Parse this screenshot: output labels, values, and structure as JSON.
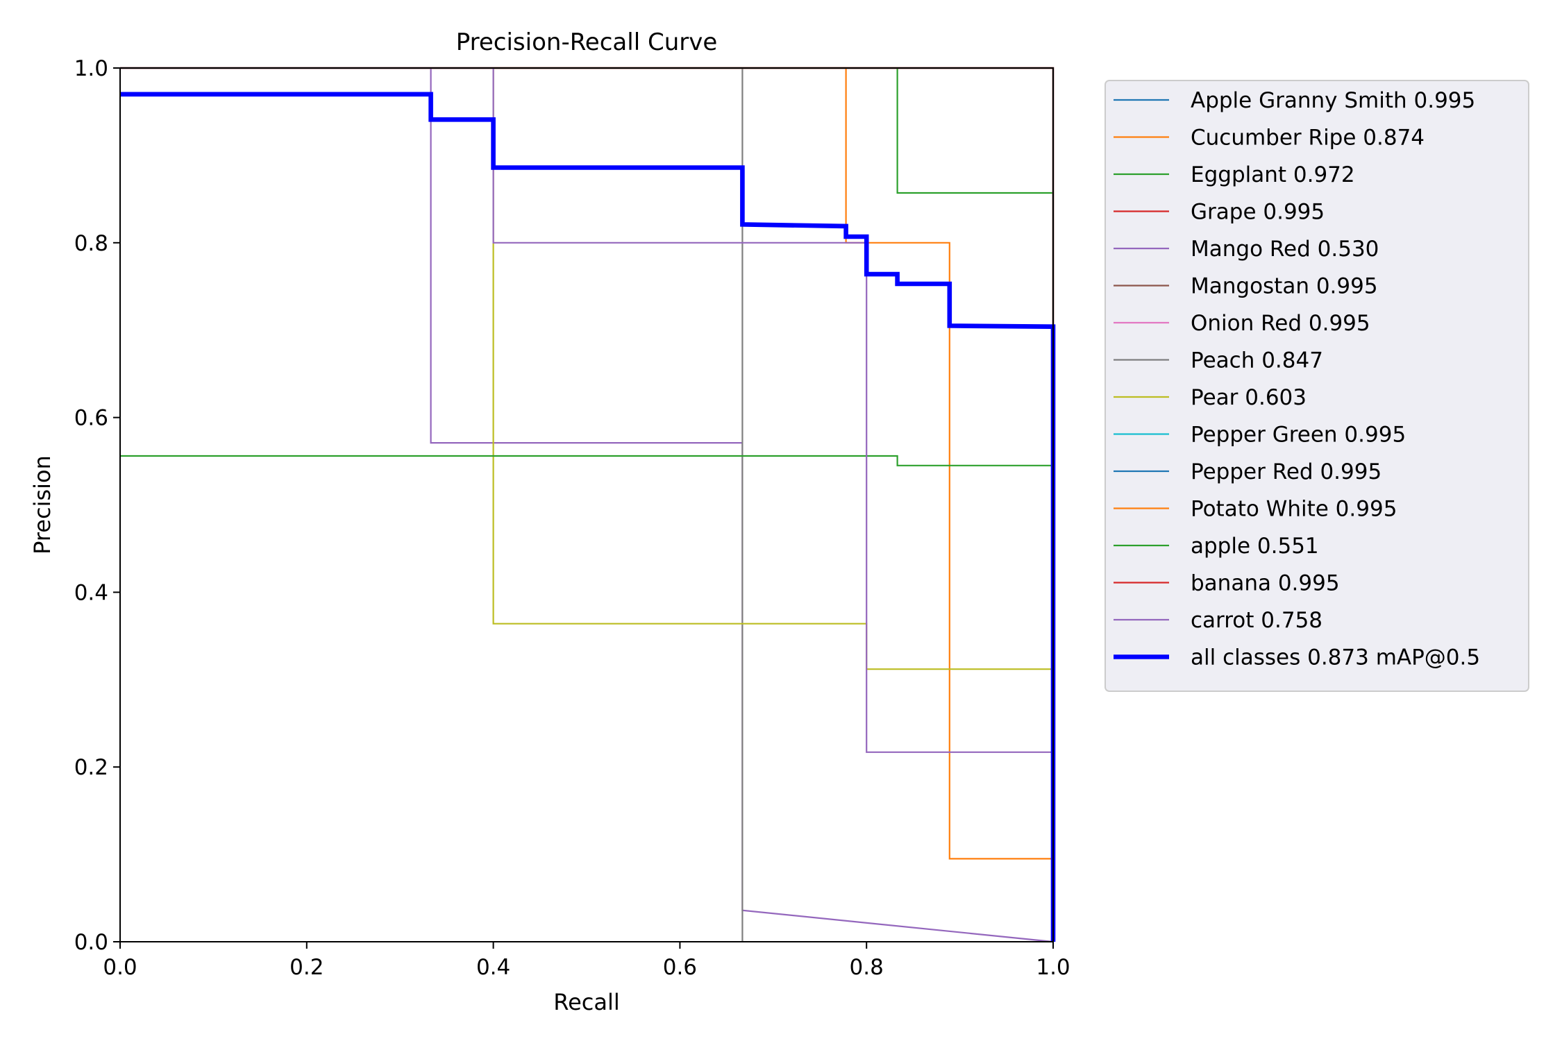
{
  "chart_data": {
    "type": "line",
    "title": "Precision-Recall Curve",
    "xlabel": "Recall",
    "ylabel": "Precision",
    "xlim": [
      0,
      1
    ],
    "ylim": [
      0,
      1
    ],
    "xticks": [
      "0.0",
      "0.2",
      "0.4",
      "0.6",
      "0.8",
      "1.0"
    ],
    "yticks": [
      "0.0",
      "0.2",
      "0.4",
      "0.6",
      "0.8",
      "1.0"
    ],
    "grid": false,
    "legend_position": "outside-right",
    "series": [
      {
        "name": "Apple Granny Smith 0.995",
        "color": "#1f77b4",
        "width": 1,
        "points": [
          [
            0,
            1
          ],
          [
            1,
            1
          ],
          [
            1,
            0
          ]
        ]
      },
      {
        "name": "Cucumber Ripe 0.874",
        "color": "#ff7f0e",
        "width": 1,
        "points": [
          [
            0,
            1
          ],
          [
            0.778,
            1
          ],
          [
            0.778,
            0.8
          ],
          [
            0.889,
            0.8
          ],
          [
            0.889,
            0.095
          ],
          [
            1,
            0.095
          ],
          [
            1,
            0
          ]
        ]
      },
      {
        "name": "Eggplant 0.972",
        "color": "#2ca02c",
        "width": 1,
        "points": [
          [
            0,
            1
          ],
          [
            0.833,
            1
          ],
          [
            0.833,
            0.857
          ],
          [
            1,
            0.857
          ],
          [
            1,
            0
          ]
        ]
      },
      {
        "name": "Grape 0.995",
        "color": "#d62728",
        "width": 1,
        "points": [
          [
            0,
            1
          ],
          [
            1,
            1
          ],
          [
            1,
            0
          ]
        ]
      },
      {
        "name": "Mango Red 0.530",
        "color": "#9467bd",
        "width": 1,
        "points": [
          [
            0,
            1
          ],
          [
            0.333,
            1
          ],
          [
            0.333,
            0.571
          ],
          [
            0.667,
            0.571
          ],
          [
            0.667,
            0.036
          ],
          [
            1,
            0
          ]
        ]
      },
      {
        "name": "Mangostan 0.995",
        "color": "#8c564b",
        "width": 1,
        "points": [
          [
            0,
            1
          ],
          [
            1,
            1
          ],
          [
            1,
            0
          ]
        ]
      },
      {
        "name": "Onion Red 0.995",
        "color": "#e377c2",
        "width": 1,
        "points": [
          [
            0,
            1
          ],
          [
            1,
            1
          ],
          [
            1,
            0
          ]
        ]
      },
      {
        "name": "Peach 0.847",
        "color": "#7f7f7f",
        "width": 1,
        "points": [
          [
            0,
            1
          ],
          [
            0.667,
            1
          ],
          [
            0.667,
            0
          ]
        ]
      },
      {
        "name": "Pear 0.603",
        "color": "#bcbd22",
        "width": 1,
        "points": [
          [
            0,
            1
          ],
          [
            0.4,
            1
          ],
          [
            0.4,
            0.364
          ],
          [
            0.8,
            0.364
          ],
          [
            0.8,
            0.312
          ],
          [
            1,
            0.312
          ],
          [
            1,
            0
          ]
        ]
      },
      {
        "name": "Pepper Green 0.995",
        "color": "#17becf",
        "width": 1,
        "points": [
          [
            0,
            1
          ],
          [
            1,
            1
          ],
          [
            1,
            0
          ]
        ]
      },
      {
        "name": "Pepper Red 0.995",
        "color": "#1f77b4",
        "width": 1,
        "points": [
          [
            0,
            1
          ],
          [
            1,
            1
          ],
          [
            1,
            0
          ]
        ]
      },
      {
        "name": "Potato White 0.995",
        "color": "#ff7f0e",
        "width": 1,
        "points": [
          [
            0,
            1
          ],
          [
            1,
            1
          ],
          [
            1,
            0
          ]
        ]
      },
      {
        "name": "apple 0.551",
        "color": "#2ca02c",
        "width": 1,
        "points": [
          [
            0,
            0.556
          ],
          [
            0.833,
            0.556
          ],
          [
            0.833,
            0.545
          ],
          [
            1,
            0.545
          ],
          [
            1,
            0
          ]
        ]
      },
      {
        "name": "banana 0.995",
        "color": "#d62728",
        "width": 1,
        "points": [
          [
            0,
            1
          ],
          [
            1,
            1
          ],
          [
            1,
            0
          ]
        ]
      },
      {
        "name": "carrot 0.758",
        "color": "#9467bd",
        "width": 1,
        "points": [
          [
            0,
            1
          ],
          [
            0.4,
            1
          ],
          [
            0.4,
            0.8
          ],
          [
            0.8,
            0.8
          ],
          [
            0.8,
            0.217
          ],
          [
            1,
            0.217
          ],
          [
            1,
            0
          ]
        ]
      },
      {
        "name": "all classes 0.873 mAP@0.5",
        "color": "#0000ff",
        "width": 3,
        "points": [
          [
            0,
            0.97
          ],
          [
            0.333,
            0.97
          ],
          [
            0.333,
            0.941
          ],
          [
            0.4,
            0.941
          ],
          [
            0.4,
            0.886
          ],
          [
            0.667,
            0.886
          ],
          [
            0.667,
            0.821
          ],
          [
            0.778,
            0.819
          ],
          [
            0.778,
            0.807
          ],
          [
            0.8,
            0.807
          ],
          [
            0.8,
            0.764
          ],
          [
            0.833,
            0.764
          ],
          [
            0.833,
            0.753
          ],
          [
            0.889,
            0.753
          ],
          [
            0.889,
            0.705
          ],
          [
            1,
            0.704
          ],
          [
            1,
            0
          ]
        ]
      }
    ]
  }
}
